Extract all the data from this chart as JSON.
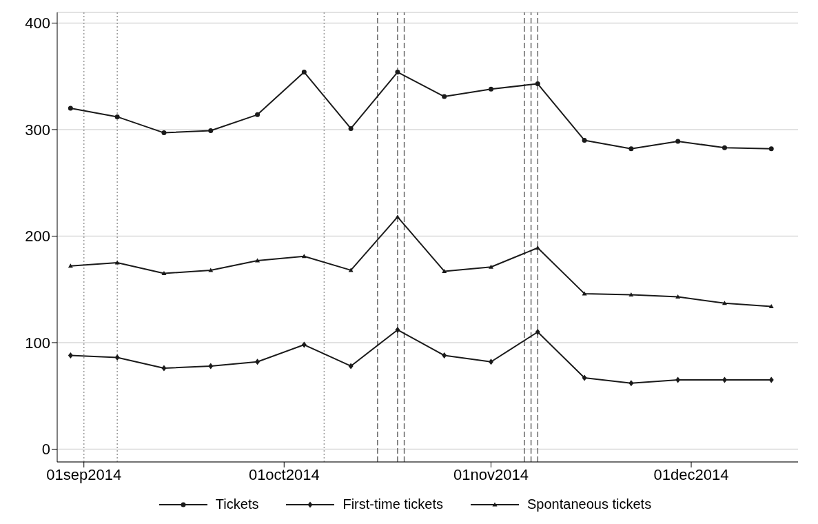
{
  "chart_data": {
    "type": "line",
    "x": [
      "2014-08-30",
      "2014-09-06",
      "2014-09-13",
      "2014-09-20",
      "2014-09-27",
      "2014-10-04",
      "2014-10-11",
      "2014-10-18",
      "2014-10-25",
      "2014-11-01",
      "2014-11-08",
      "2014-11-15",
      "2014-11-22",
      "2014-11-29",
      "2014-12-06",
      "2014-12-13"
    ],
    "series": [
      {
        "name": "Tickets",
        "color": "#1a1a1a",
        "marker": "circle",
        "values": [
          320,
          312,
          297,
          299,
          314,
          354,
          301,
          354,
          331,
          338,
          343,
          290,
          282,
          289,
          283,
          282
        ]
      },
      {
        "name": "First-time tickets",
        "color": "#1a1a1a",
        "marker": "diamond",
        "values": [
          88,
          86,
          76,
          78,
          82,
          98,
          78,
          112,
          88,
          82,
          110,
          67,
          62,
          65,
          65,
          65
        ]
      },
      {
        "name": "Spontaneous tickets",
        "color": "#1a1a1a",
        "marker": "triangle",
        "values": [
          172,
          175,
          165,
          168,
          177,
          181,
          168,
          218,
          167,
          171,
          189,
          146,
          145,
          143,
          137,
          134
        ]
      }
    ],
    "xlim": [
      "2014-08-28",
      "2014-12-17"
    ],
    "xticks": [
      {
        "value": "2014-09-01",
        "label": "01sep2014"
      },
      {
        "value": "2014-10-01",
        "label": "01oct2014"
      },
      {
        "value": "2014-11-01",
        "label": "01nov2014"
      },
      {
        "value": "2014-12-01",
        "label": "01dec2014"
      }
    ],
    "ylim": [
      -12,
      410
    ],
    "yticks": [
      0,
      100,
      200,
      300,
      400
    ],
    "grid": "y",
    "legend": "bottom",
    "line_style": "solid",
    "ref_lines": [
      {
        "axis": "x",
        "value": "2014-09-01",
        "line_style": "dotted",
        "color": "#999999"
      },
      {
        "axis": "x",
        "value": "2014-09-06",
        "line_style": "dotted",
        "color": "#999999"
      },
      {
        "axis": "x",
        "value": "2014-10-07",
        "line_style": "dotted",
        "color": "#999999"
      },
      {
        "axis": "x",
        "value": "2014-10-15",
        "line_style": "dashed",
        "color": "#666666"
      },
      {
        "axis": "x",
        "value": "2014-10-18",
        "line_style": "dashed",
        "color": "#666666"
      },
      {
        "axis": "x",
        "value": "2014-10-19",
        "line_style": "dashed",
        "color": "#666666"
      },
      {
        "axis": "x",
        "value": "2014-11-06",
        "line_style": "dashed",
        "color": "#666666"
      },
      {
        "axis": "x",
        "value": "2014-11-07",
        "line_style": "dashed",
        "color": "#666666"
      },
      {
        "axis": "x",
        "value": "2014-11-08",
        "line_style": "dashed",
        "color": "#666666"
      }
    ]
  }
}
